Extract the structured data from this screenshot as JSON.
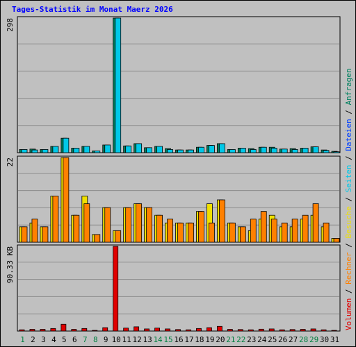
{
  "title": "Tages-Statistik im Monat Maerz 2026",
  "colors": {
    "background": "#c0c0c0",
    "grid": "#8c8c8c",
    "anfragen": "#00805f",
    "dateien": "#00c8e8",
    "seiten": "#00c8e8",
    "besuche": "#f0e000",
    "rechner": "#ff8000",
    "volumen": "#e00000",
    "weekend_day": "#008040",
    "weekday": "#000000"
  },
  "chart_data": {
    "type": "bar",
    "title": "Tages-Statistik im Monat Maerz 2026",
    "x": [
      1,
      2,
      3,
      4,
      5,
      6,
      7,
      8,
      9,
      10,
      11,
      12,
      13,
      14,
      15,
      16,
      17,
      18,
      19,
      20,
      21,
      22,
      23,
      24,
      25,
      26,
      27,
      28,
      29,
      30,
      31
    ],
    "x_tick_labels": [
      "1",
      "2",
      "3",
      "4",
      "5",
      "6",
      "7",
      "8",
      "9",
      "10",
      "11",
      "12",
      "13",
      "14",
      "15",
      "16",
      "17",
      "18",
      "19",
      "20",
      "21",
      "22",
      "23",
      "24",
      "25",
      "26",
      "27",
      "28",
      "29",
      "30",
      "31"
    ],
    "weekend_days": [
      1,
      7,
      8,
      14,
      15,
      21,
      22,
      28,
      29
    ],
    "panels": [
      {
        "name": "top",
        "ymax_label": "298",
        "ylim": [
          0,
          298
        ],
        "grid": true,
        "series": [
          {
            "name": "Anfragen",
            "color": "#00805f",
            "values": [
              7,
              8,
              7,
              14,
              32,
              10,
              14,
              4,
              17,
              298,
              15,
              20,
              11,
              14,
              9,
              6,
              6,
              12,
              16,
              20,
              7,
              10,
              9,
              12,
              12,
              8,
              9,
              10,
              13,
              6,
              3
            ]
          },
          {
            "name": "Dateien",
            "color": "#00c8e8",
            "values": [
              7,
              6,
              7,
              14,
              32,
              10,
              14,
              4,
              17,
              298,
              15,
              20,
              11,
              14,
              7,
              6,
              6,
              12,
              16,
              20,
              7,
              10,
              7,
              12,
              10,
              8,
              7,
              10,
              13,
              5,
              2
            ]
          }
        ]
      },
      {
        "name": "middle",
        "ymax_label": "22",
        "ylim": [
          0,
          22
        ],
        "grid": true,
        "series": [
          {
            "name": "Seiten",
            "color": "#00c8e8",
            "values": []
          },
          {
            "name": "Besuche",
            "color": "#f0e000",
            "values": [
              4,
              5,
              4,
              12,
              22,
              7,
              12,
              2,
              9,
              3,
              9,
              10,
              9,
              7,
              5,
              5,
              5,
              8,
              10,
              11,
              5,
              4,
              3,
              6,
              7,
              4,
              4,
              6,
              7,
              4,
              1
            ]
          },
          {
            "name": "Rechner",
            "color": "#ff8000",
            "values": [
              4,
              6,
              4,
              12,
              22,
              7,
              10,
              2,
              9,
              3,
              9,
              10,
              9,
              7,
              6,
              5,
              5,
              8,
              5,
              11,
              5,
              4,
              6,
              8,
              6,
              5,
              6,
              7,
              10,
              5,
              1
            ]
          }
        ]
      },
      {
        "name": "bottom",
        "ymax_label": "90.33 KB",
        "ylim": [
          0,
          100
        ],
        "grid": true,
        "series": [
          {
            "name": "Volumen",
            "color": "#e00000",
            "values": [
              1.5,
              2,
              2,
              3,
              8,
              2,
              3,
              0.8,
              4,
              100,
              3.5,
              5,
              2.5,
              3.5,
              2.5,
              1.8,
              1.5,
              3,
              4,
              5.5,
              2,
              1.8,
              1.5,
              2.2,
              2.5,
              1.5,
              1.8,
              2,
              2.5,
              1.5,
              0.8
            ]
          }
        ]
      }
    ],
    "legend": {
      "placement": "right-vertical",
      "items": [
        {
          "text": "Volumen",
          "color": "#e00000"
        },
        {
          "text": " / ",
          "color": "#000000"
        },
        {
          "text": "Rechner",
          "color": "#ff8000"
        },
        {
          "text": " / ",
          "color": "#000000"
        },
        {
          "text": "Besuche",
          "color": "#f0e000"
        },
        {
          "text": " / ",
          "color": "#000000"
        },
        {
          "text": "Seiten",
          "color": "#00c8e8"
        },
        {
          "text": " / ",
          "color": "#000000"
        },
        {
          "text": "Dateien",
          "color": "#0040ff"
        },
        {
          "text": " / ",
          "color": "#000000"
        },
        {
          "text": "Anfragen",
          "color": "#00805f"
        }
      ]
    }
  }
}
